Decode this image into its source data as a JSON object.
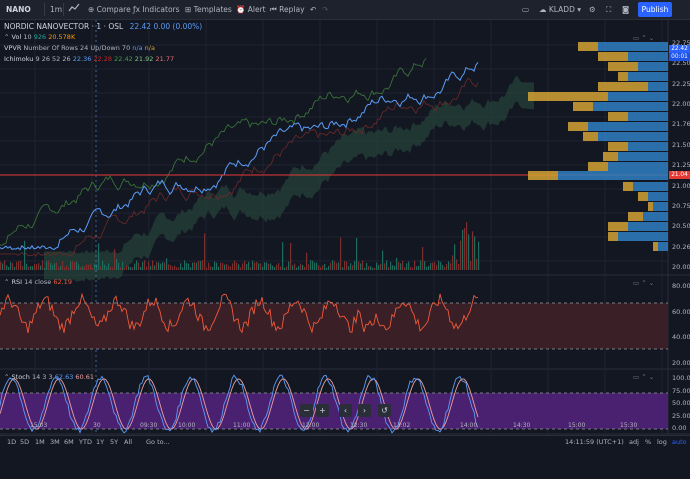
{
  "toolbar": {
    "symbol": "NANO",
    "interval": "1m",
    "compare": "Compare",
    "indicators": "Indicators",
    "templates": "Templates",
    "alert": "Alert",
    "replay": "Replay",
    "layout_name": "KLADD",
    "publish": "Publish"
  },
  "main": {
    "title": "NORDIC NANOVECTOR · 1 · OSL",
    "last": "22.42",
    "change": "0.00 (0.00%)",
    "vol_label": "Vol",
    "vol_period": "10",
    "vol_value": "926",
    "vol_ma": "20.578K",
    "vpvr_label": "VPVR",
    "vpvr_params": "Number Of Rows 24 Up/Down 70",
    "vpvr_na1": "n/a",
    "vpvr_na2": "n/a",
    "ichimoku_label": "Ichimoku",
    "ichimoku_params": "9 26 52 26",
    "ichimoku_v1": "22.36",
    "ichimoku_v2": "22.28",
    "ichimoku_v3": "22.42",
    "ichimoku_v4": "21.92",
    "ichimoku_v5": "21.77",
    "price_ticks": [
      "22.75",
      "22.50",
      "22.25",
      "22.00",
      "21.76",
      "21.50",
      "21.25",
      "21.00",
      "20.75",
      "20.50",
      "20.26",
      "20.00"
    ],
    "last_price_label": "22.42",
    "countdown": "00:01",
    "hline_price": "21.04"
  },
  "rsi": {
    "label": "RSI",
    "params": "14 close",
    "value": "62.19",
    "ticks": [
      "80.00",
      "60.00",
      "40.00",
      "20.00"
    ]
  },
  "stoch": {
    "label": "Stoch",
    "params": "14 3 3",
    "k": "62.63",
    "d": "60.61",
    "ticks": [
      "100.00",
      "75.00",
      "50.00",
      "25.00",
      "0.00"
    ]
  },
  "time_axis": [
    "15:03",
    "30",
    "09:30",
    "10:00",
    "11:00",
    "12:00",
    "12:30",
    "13:02",
    "14:00",
    "14:30",
    "15:00",
    "15:30"
  ],
  "controls": {
    "minus": "−",
    "plus": "+",
    "left": "‹",
    "right": "›",
    "reset": "↺"
  },
  "timeframes": [
    "1D",
    "5D",
    "1M",
    "3M",
    "6M",
    "YTD",
    "1Y",
    "5Y",
    "All"
  ],
  "goto": "Go to...",
  "clock": "14:11:59 (UTC+1)",
  "bottom_right": {
    "percent": "%",
    "log": "log",
    "auto": "auto",
    "adj": "adj"
  },
  "colors": {
    "bg": "#131722",
    "price_line": "#5b9cf6",
    "cloud_green": "#2e4a3a",
    "rsi_line": "#f05a3a",
    "stoch_k": "#5b9cf6",
    "stoch_d": "#e8a0a0",
    "stoch_band": "#6a2d9e",
    "vpvr_up": "#2f7fc1",
    "vpvr_down": "#d4a233",
    "hline": "#e53935"
  }
}
